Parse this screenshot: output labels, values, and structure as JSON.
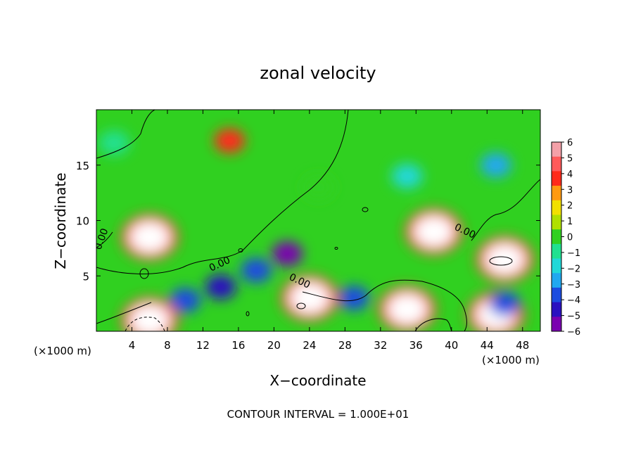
{
  "chart_data": {
    "type": "heatmap",
    "title": "zonal velocity",
    "xlabel": "X−coordinate",
    "ylabel": "Z−coordinate",
    "x_unit_left": "(×1000 m)",
    "x_unit_right": "(×1000 m)",
    "footer": "CONTOUR INTERVAL = 1.000E+01",
    "xlim": [
      0,
      50
    ],
    "ylim": [
      0,
      20
    ],
    "x_ticks": [
      4,
      8,
      12,
      16,
      20,
      24,
      28,
      32,
      36,
      40,
      44,
      48
    ],
    "y_ticks": [
      5,
      10,
      15
    ],
    "colorbar": {
      "levels": [
        6,
        5,
        4,
        3,
        2,
        1,
        0,
        -1,
        -2,
        -3,
        -4,
        -5,
        -6
      ],
      "labels": [
        "6",
        "5",
        "4",
        "3",
        "2",
        "1",
        "0",
        "−1",
        "−2",
        "−3",
        "−4",
        "−5",
        "−6"
      ],
      "colors": [
        "#f4a0a8",
        "#ff5a5a",
        "#ff2a1a",
        "#ff9a10",
        "#f2e000",
        "#b0e000",
        "#30d020",
        "#20e090",
        "#20d8d8",
        "#20a8f0",
        "#1b4ce0",
        "#2a10c0",
        "#7a00b0"
      ]
    },
    "contour_labels": [
      "0.00",
      "0.00",
      "0.00",
      "0.00"
    ],
    "features": [
      {
        "x": 15,
        "y": 17.2,
        "value": 3.5
      },
      {
        "x": 6,
        "y": 8.5,
        "value": 7
      },
      {
        "x": 38,
        "y": 9,
        "value": 7
      },
      {
        "x": 46,
        "y": 6.5,
        "value": 7
      },
      {
        "x": 24,
        "y": 3,
        "value": 7
      },
      {
        "x": 35,
        "y": 2,
        "value": 7
      },
      {
        "x": 6,
        "y": 1,
        "value": 7
      },
      {
        "x": 45,
        "y": 1.5,
        "value": 7
      },
      {
        "x": 21.5,
        "y": 7,
        "value": -6
      },
      {
        "x": 14,
        "y": 4,
        "value": -5
      },
      {
        "x": 18,
        "y": 5.5,
        "value": -4
      },
      {
        "x": 45,
        "y": 15,
        "value": -3
      },
      {
        "x": 35,
        "y": 14,
        "value": -2.5
      },
      {
        "x": 46,
        "y": 2.5,
        "value": -4
      },
      {
        "x": 10,
        "y": 2.8,
        "value": -4
      },
      {
        "x": 29,
        "y": 3,
        "value": -4
      },
      {
        "x": 2,
        "y": 17,
        "value": -1
      },
      {
        "x": 25,
        "y": 13,
        "value": 0
      }
    ]
  }
}
